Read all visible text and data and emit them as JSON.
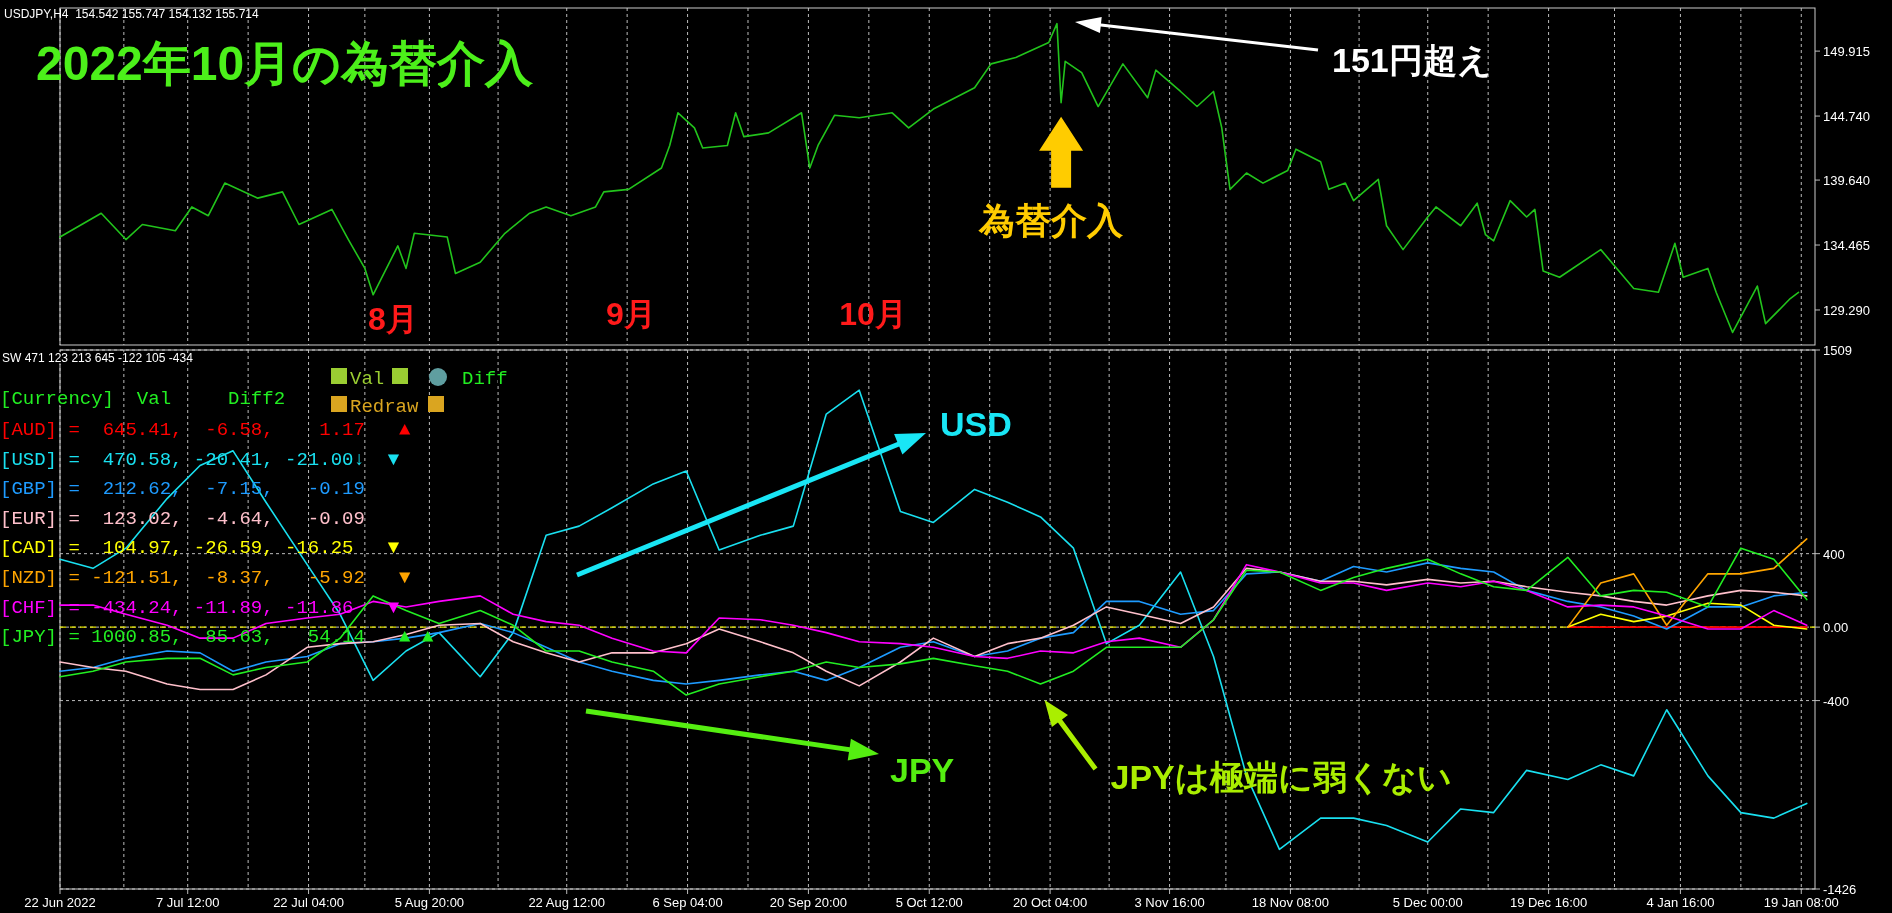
{
  "chart_data": [
    {
      "type": "line",
      "title": "2022年10月の為替介入",
      "annotations": [
        "USDJPY,H4  154.542 155.747 154.132 155.714",
        "8月",
        "9月",
        "10月",
        "151円超え",
        {
          "text": "為替介入",
          "x": "2022-10-21T12:00",
          "y": 145.8
        }
      ],
      "x": [
        "2022-06-22",
        "2022-06-27",
        "2022-06-30",
        "2022-07-02",
        "2022-07-06",
        "2022-07-08",
        "2022-07-10",
        "2022-07-12",
        "2022-07-16",
        "2022-07-19",
        "2022-07-21",
        "2022-07-25",
        "2022-07-27",
        "2022-07-29",
        "2022-07-30",
        "2022-08-02",
        "2022-08-03",
        "2022-08-04",
        "2022-08-08",
        "2022-08-09",
        "2022-08-12",
        "2022-08-15",
        "2022-08-18",
        "2022-08-20",
        "2022-08-23",
        "2022-08-26",
        "2022-08-27",
        "2022-08-30",
        "2022-09-03",
        "2022-09-04",
        "2022-09-05",
        "2022-09-07",
        "2022-09-08",
        "2022-09-11",
        "2022-09-12",
        "2022-09-13",
        "2022-09-16",
        "2022-09-20",
        "2022-09-21",
        "2022-09-22",
        "2022-09-24",
        "2022-09-27",
        "2022-10-01",
        "2022-10-03",
        "2022-10-06",
        "2022-10-11",
        "2022-10-13",
        "2022-10-16",
        "2022-10-20",
        "2022-10-21T00:00",
        "2022-10-21T12:00",
        "2022-10-22",
        "2022-10-24",
        "2022-10-26",
        "2022-10-29",
        "2022-11-01",
        "2022-11-02",
        "2022-11-05",
        "2022-11-07",
        "2022-11-09",
        "2022-11-10",
        "2022-11-11",
        "2022-11-13",
        "2022-11-15",
        "2022-11-18",
        "2022-11-19",
        "2022-11-22",
        "2022-11-23",
        "2022-11-25",
        "2022-11-26",
        "2022-11-29",
        "2022-11-30",
        "2022-12-02",
        "2022-12-05",
        "2022-12-06",
        "2022-12-09",
        "2022-12-11",
        "2022-12-12",
        "2022-12-13",
        "2022-12-15",
        "2022-12-17",
        "2022-12-18",
        "2022-12-19",
        "2022-12-21",
        "2022-12-26",
        "2022-12-30",
        "2023-01-02",
        "2023-01-04",
        "2023-01-05",
        "2023-01-08",
        "2023-01-09",
        "2023-01-11",
        "2023-01-14",
        "2023-01-15",
        "2023-01-18",
        "2023-01-19"
      ],
      "series": [
        {
          "color": "#22c41c",
          "values": [
            135.1,
            137.0,
            134.9,
            136.1,
            135.6,
            137.5,
            136.8,
            139.4,
            138.2,
            138.7,
            136.1,
            137.3,
            134.9,
            132.6,
            130.5,
            134.4,
            132.6,
            135.4,
            135.1,
            132.2,
            133.1,
            135.4,
            137.0,
            137.5,
            136.8,
            137.5,
            138.7,
            138.9,
            140.6,
            142.4,
            145.0,
            143.8,
            142.2,
            142.4,
            145.0,
            143.1,
            143.4,
            145.0,
            140.6,
            142.4,
            144.8,
            144.6,
            145.0,
            143.8,
            145.3,
            147.0,
            148.9,
            149.4,
            150.6,
            152.1,
            145.8,
            149.1,
            148.2,
            145.5,
            148.9,
            146.2,
            148.4,
            146.7,
            145.5,
            146.7,
            143.8,
            138.9,
            140.2,
            139.4,
            140.4,
            142.1,
            141.1,
            138.9,
            139.4,
            138.0,
            139.7,
            136.0,
            134.1,
            136.7,
            137.5,
            136.0,
            137.8,
            135.3,
            134.8,
            138.0,
            136.7,
            137.3,
            132.4,
            131.9,
            134.1,
            131.0,
            130.7,
            134.6,
            131.9,
            132.6,
            130.7,
            127.5,
            131.2,
            128.2,
            130.2,
            130.7
          ]
        }
      ],
      "xlim": [
        "2022-06-22T00:00",
        "2023-01-21T00:00"
      ],
      "ylim": [
        126.5,
        153.35
      ],
      "yticks": [
        149.915,
        {
          "value": 144.74,
          "label": "144.740"
        },
        {
          "value": 139.64,
          "label": "139.640"
        },
        134.465,
        {
          "value": 129.29,
          "label": "129.290"
        }
      ],
      "xticks": [
        {
          "value": "2022-06-22T00:00",
          "label": null
        },
        {
          "value": "2022-06-29T18:00",
          "label": null
        },
        {
          "value": "2022-07-07T12:00",
          "label": null
        },
        {
          "value": "2022-07-14T20:00",
          "label": null
        },
        {
          "value": "2022-07-22T04:00",
          "label": null
        },
        {
          "value": "2022-07-29T00:00",
          "label": null
        },
        {
          "value": "2022-08-05T20:00",
          "label": null
        },
        {
          "value": "2022-08-14T04:00",
          "label": null
        },
        {
          "value": "2022-08-22T12:00",
          "label": null
        },
        {
          "value": "2022-08-29T20:00",
          "label": null
        },
        {
          "value": "2022-09-06T04:00",
          "label": null
        },
        {
          "value": "2022-09-13T12:00",
          "label": null
        },
        {
          "value": "2022-09-20T20:00",
          "label": null
        },
        {
          "value": "2022-09-28T04:00",
          "label": null
        },
        {
          "value": "2022-10-05T12:00",
          "label": null
        },
        {
          "value": "2022-10-12T20:00",
          "label": null
        },
        {
          "value": "2022-10-20T04:00",
          "label": null
        },
        {
          "value": "2022-10-27T08:00",
          "label": null
        },
        {
          "value": "2022-11-03T16:00",
          "label": null
        },
        {
          "value": "2022-11-10T12:00",
          "label": null
        },
        {
          "value": "2022-11-18T08:00",
          "label": null
        },
        {
          "value": "2022-11-26T16:00",
          "label": null
        },
        {
          "value": "2022-12-05T00:00",
          "label": null
        },
        {
          "value": "2022-12-12T08:00",
          "label": null
        },
        {
          "value": "2022-12-19T16:00",
          "label": null
        },
        {
          "value": "2022-12-27T16:00",
          "label": null
        },
        {
          "value": "2023-01-04T16:00",
          "label": null
        },
        {
          "value": "2023-01-12T00:00",
          "label": null
        },
        {
          "value": "2023-01-19T08:00",
          "label": null
        }
      ],
      "tick_labels": "y",
      "grid": "x",
      "marker": "none"
    },
    {
      "type": "line",
      "annotations": [
        "SW 471 123 213 645 -122 105 -434",
        "[Currency]  Val     Diff2",
        "Val",
        "Diff",
        "Redraw",
        "=  645.41,  -6.58,    1.17   ▲",
        "=  470.58, -20.41, -21.00↓  ▼",
        "=  212.62,  -7.15,   -0.19",
        "=  123.02,  -4.64,   -0.09",
        "=  104.97, -26.59, -16.25   ▼",
        "= -121.51,  -8.37,   -5.92   ▼",
        "= -434.24, -11.89, -11.86   ▼",
        "= 1000.85,  85.63,   54.14   ▲ ▲",
        "USD",
        "JPY",
        {
          "text": "JPYは極端に弱くない",
          "x": "2022-10-19",
          "y": -310
        }
      ],
      "x": [
        "2022-06-22",
        "2022-06-26",
        "2022-06-30",
        "2022-07-05",
        "2022-07-09",
        "2022-07-13",
        "2022-07-17",
        "2022-07-22",
        "2022-07-26",
        "2022-07-30",
        "2022-08-03",
        "2022-08-07",
        "2022-08-12",
        "2022-08-16",
        "2022-08-20",
        "2022-08-24",
        "2022-08-28",
        "2022-09-02",
        "2022-09-06",
        "2022-09-10",
        "2022-09-15",
        "2022-09-19",
        "2022-09-23",
        "2022-09-27",
        "2022-10-02",
        "2022-10-06",
        "2022-10-11",
        "2022-10-15",
        "2022-10-19",
        "2022-10-23",
        "2022-10-27",
        "2022-10-31",
        "2022-11-05",
        "2022-11-09",
        "2022-11-13",
        "2022-11-17",
        "2022-11-22",
        "2022-11-26",
        "2022-11-30",
        "2022-12-05",
        "2022-12-09",
        "2022-12-13",
        "2022-12-17",
        "2022-12-22",
        "2022-12-26",
        "2022-12-30",
        "2023-01-03",
        "2023-01-08",
        "2023-01-12",
        "2023-01-16",
        "2023-01-20"
      ],
      "series": [
        {
          "name": "[AUD]",
          "color": "#ff0000",
          "x": [
            "2022-12-22",
            "2022-12-26",
            "2022-12-30",
            "2023-01-03",
            "2023-01-08",
            "2023-01-12",
            "2023-01-16",
            "2023-01-20"
          ],
          "values": [
            0,
            0,
            0,
            0,
            0,
            0,
            0,
            0
          ]
        },
        {
          "name": "[USD]",
          "color": "#19e0f0",
          "values": [
            370,
            320,
            430,
            700,
            880,
            960,
            680,
            340,
            70,
            -290,
            -130,
            -30,
            -270,
            -30,
            500,
            550,
            650,
            780,
            850,
            420,
            500,
            550,
            1160,
            1290,
            630,
            570,
            750,
            680,
            600,
            430,
            -90,
            10,
            300,
            -160,
            -810,
            -1210,
            -1040,
            -1040,
            -1080,
            -1170,
            -990,
            -1010,
            -780,
            -830,
            -750,
            -810,
            -450,
            -810,
            -1010,
            -1040,
            -960
          ]
        },
        {
          "name": "[GBP]",
          "color": "#1e9bff",
          "values": [
            -240,
            -220,
            -170,
            -130,
            -140,
            -240,
            -190,
            -160,
            -90,
            -80,
            -60,
            -30,
            20,
            -30,
            -110,
            -190,
            -240,
            -290,
            -310,
            -290,
            -260,
            -240,
            -290,
            -220,
            -110,
            -80,
            -160,
            -130,
            -60,
            -30,
            140,
            140,
            70,
            90,
            290,
            300,
            250,
            330,
            300,
            350,
            320,
            300,
            200,
            140,
            110,
            60,
            -10,
            110,
            110,
            170,
            190
          ]
        },
        {
          "name": "[EUR]",
          "color": "#ffc0cb",
          "values": [
            -190,
            -220,
            -240,
            -310,
            -340,
            -340,
            -260,
            -110,
            -90,
            -80,
            -40,
            10,
            20,
            -80,
            -140,
            -190,
            -140,
            -140,
            -90,
            -10,
            -80,
            -140,
            -240,
            -320,
            -190,
            -60,
            -160,
            -90,
            -60,
            10,
            110,
            70,
            20,
            110,
            320,
            300,
            250,
            250,
            230,
            260,
            240,
            250,
            220,
            190,
            170,
            140,
            120,
            170,
            200,
            190,
            170
          ]
        },
        {
          "name": "[CAD]",
          "color": "#ffff00",
          "x": [
            "2022-12-22",
            "2022-12-26",
            "2022-12-30",
            "2023-01-03",
            "2023-01-08",
            "2023-01-12",
            "2023-01-16",
            "2023-01-20"
          ],
          "values": [
            0,
            70,
            30,
            60,
            130,
            120,
            10,
            -10
          ]
        },
        {
          "name": "[NZD]",
          "color": "#ffa500",
          "x": [
            "2022-12-22",
            "2022-12-26",
            "2022-12-30",
            "2023-01-03",
            "2023-01-08",
            "2023-01-12",
            "2023-01-16",
            "2023-01-20"
          ],
          "values": [
            0,
            240,
            290,
            10,
            290,
            290,
            320,
            480
          ]
        },
        {
          "name": "[CHF]",
          "color": "#ff00ff",
          "values": [
            120,
            120,
            70,
            10,
            -60,
            -60,
            20,
            50,
            70,
            140,
            110,
            140,
            170,
            70,
            30,
            10,
            -60,
            -130,
            -140,
            50,
            40,
            10,
            -30,
            -80,
            -90,
            -110,
            -160,
            -170,
            -130,
            -140,
            -80,
            -60,
            -110,
            40,
            340,
            300,
            240,
            240,
            200,
            240,
            220,
            250,
            200,
            110,
            120,
            110,
            60,
            -10,
            -10,
            90,
            10
          ]
        },
        {
          "name": "[JPY]",
          "color": "#22ee22",
          "values": [
            -270,
            -240,
            -190,
            -170,
            -170,
            -260,
            -220,
            -190,
            -60,
            170,
            90,
            20,
            90,
            10,
            -130,
            -130,
            -190,
            -240,
            -370,
            -310,
            -270,
            -240,
            -190,
            -220,
            -200,
            -170,
            -210,
            -240,
            -310,
            -240,
            -110,
            -110,
            -110,
            40,
            310,
            300,
            200,
            270,
            320,
            370,
            290,
            220,
            200,
            380,
            170,
            200,
            190,
            110,
            430,
            370,
            150
          ]
        }
      ],
      "xlim": [
        "2022-06-22T00:00",
        "2023-01-21T00:00"
      ],
      "ylim": [
        -1426,
        1509
      ],
      "yticks": [
        1509,
        400,
        {
          "value": 0,
          "label": "0.00"
        },
        -400,
        -1426
      ],
      "xticks": [
        {
          "value": "2022-06-22T00:00",
          "label": "22 Jun 2022"
        },
        {
          "value": "2022-06-29T18:00",
          "label": null
        },
        {
          "value": "2022-07-07T12:00",
          "label": "7 Jul 12:00"
        },
        {
          "value": "2022-07-14T20:00",
          "label": null
        },
        {
          "value": "2022-07-22T04:00",
          "label": "22 Jul 04:00"
        },
        {
          "value": "2022-07-29T00:00",
          "label": null
        },
        {
          "value": "2022-08-05T20:00",
          "label": "5 Aug 20:00"
        },
        {
          "value": "2022-08-14T04:00",
          "label": null
        },
        {
          "value": "2022-08-22T12:00",
          "label": "22 Aug 12:00"
        },
        {
          "value": "2022-08-29T20:00",
          "label": null
        },
        {
          "value": "2022-09-06T04:00",
          "label": "6 Sep 04:00"
        },
        {
          "value": "2022-09-13T12:00",
          "label": null
        },
        {
          "value": "2022-09-20T20:00",
          "label": "20 Sep 20:00"
        },
        {
          "value": "2022-09-28T04:00",
          "label": null
        },
        {
          "value": "2022-10-05T12:00",
          "label": "5 Oct 12:00"
        },
        {
          "value": "2022-10-12T20:00",
          "label": null
        },
        {
          "value": "2022-10-20T04:00",
          "label": "20 Oct 04:00"
        },
        {
          "value": "2022-10-27T08:00",
          "label": null
        },
        {
          "value": "2022-11-03T16:00",
          "label": "3 Nov 16:00"
        },
        {
          "value": "2022-11-10T12:00",
          "label": null
        },
        {
          "value": "2022-11-18T08:00",
          "label": "18 Nov 08:00"
        },
        {
          "value": "2022-11-26T16:00",
          "label": null
        },
        {
          "value": "2022-12-05T00:00",
          "label": "5 Dec 00:00"
        },
        {
          "value": "2022-12-12T08:00",
          "label": null
        },
        {
          "value": "2022-12-19T16:00",
          "label": "19 Dec 16:00"
        },
        {
          "value": "2022-12-27T16:00",
          "label": null
        },
        {
          "value": "2023-01-04T16:00",
          "label": "4 Jan 16:00"
        },
        {
          "value": "2023-01-12T00:00",
          "label": null
        },
        {
          "value": "2023-01-19T08:00",
          "label": "19 Jan 08:00"
        }
      ],
      "ref_lines": [
        {
          "axis": "y",
          "value": 0,
          "color": "#e6e600",
          "line_style": "dashed"
        }
      ],
      "grid": true,
      "marker": "none"
    }
  ]
}
